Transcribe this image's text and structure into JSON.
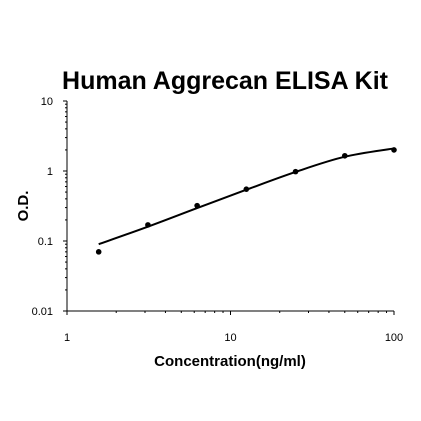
{
  "chart_data": {
    "type": "scatter",
    "title": "Human Aggrecan ELISA Kit",
    "xlabel": "Concentration(ng/ml)",
    "ylabel": "O.D.",
    "x_scale": "log",
    "y_scale": "log",
    "xlim": [
      1,
      100
    ],
    "ylim": [
      0.01,
      10
    ],
    "x_ticks": [
      {
        "value": 1,
        "label": "1"
      },
      {
        "value": 10,
        "label": "10"
      },
      {
        "value": 100,
        "label": "100"
      }
    ],
    "y_ticks": [
      {
        "value": 0.01,
        "label": "0.01"
      },
      {
        "value": 0.1,
        "label": "0.1"
      },
      {
        "value": 1,
        "label": "1"
      },
      {
        "value": 10,
        "label": "10"
      }
    ],
    "grid": false,
    "legend": "none",
    "colors": {
      "points": "#000000",
      "fit_line": "#000000",
      "axes": "#000000"
    },
    "series": [
      {
        "values_xy": [
          [
            1.5625,
            0.07
          ],
          [
            3.125,
            0.17
          ],
          [
            6.25,
            0.32
          ],
          [
            12.5,
            0.55
          ],
          [
            25,
            0.98
          ],
          [
            50,
            1.65
          ],
          [
            100,
            2.0
          ]
        ]
      }
    ],
    "fit_curve": [
      [
        1.5625,
        0.09
      ],
      [
        3.125,
        0.16
      ],
      [
        6.25,
        0.295
      ],
      [
        12.5,
        0.54
      ],
      [
        25,
        0.97
      ],
      [
        50,
        1.6
      ],
      [
        100,
        2.1
      ]
    ]
  }
}
